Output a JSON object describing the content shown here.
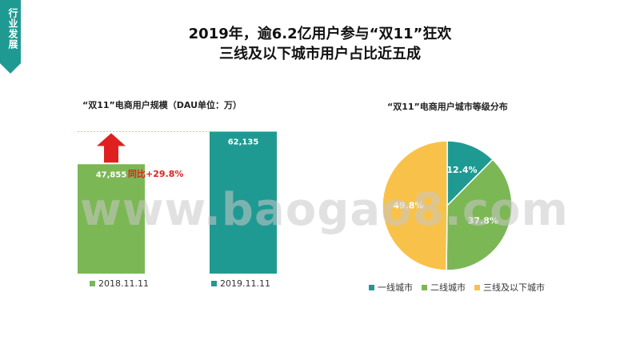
{
  "side_tab": {
    "label": "行业发展"
  },
  "title": {
    "line1": "2019年，逾6.2亿用户参与“双11”狂欢",
    "line2": "三线及以下城市用户占比近五成"
  },
  "yoy_label": "同比+29.8%",
  "watermark": "www.baogao8.com",
  "colors": {
    "green": "#7cb755",
    "teal": "#1f9a93",
    "yellow": "#f8c24a",
    "red": "#e02020",
    "accent": "#1f9a93"
  },
  "chart_data": [
    {
      "type": "bar",
      "title": "“双11”电商用户规模（DAU单位：万）",
      "categories": [
        "2018.11.11",
        "2019.11.11"
      ],
      "values": [
        47855,
        62135
      ],
      "value_labels": [
        "47,855",
        "62,135"
      ],
      "colors": [
        "#7cb755",
        "#1f9a93"
      ],
      "ylim": [
        0,
        70000
      ],
      "legend_position": "bottom"
    },
    {
      "type": "pie",
      "title": "“双11”电商用户城市等级分布",
      "labels": [
        "一线城市",
        "二线城市",
        "三线及以下城市"
      ],
      "values": [
        12.4,
        37.8,
        49.8
      ],
      "value_labels": [
        "12.4%",
        "37.8%",
        "49.8%"
      ],
      "colors": [
        "#1f9a93",
        "#7cb755",
        "#f8c24a"
      ],
      "legend_position": "bottom"
    }
  ]
}
